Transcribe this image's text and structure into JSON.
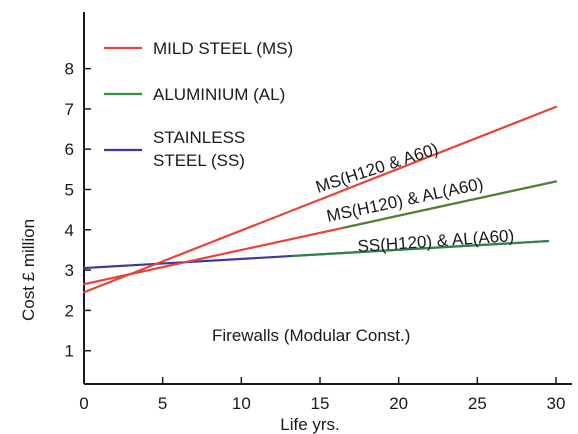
{
  "chart_data": {
    "type": "line",
    "title": "",
    "xlabel": "Life yrs.",
    "ylabel": "Cost £ million",
    "xlim": [
      0,
      31
    ],
    "ylim": [
      0,
      9
    ],
    "xticks": [
      0,
      5,
      10,
      15,
      20,
      25,
      30
    ],
    "yticks": [
      1,
      2,
      3,
      4,
      5,
      6,
      7,
      8
    ],
    "grid": false,
    "legend_position": "top-left",
    "legend": [
      {
        "label": "MILD STEEL (MS)",
        "color": "#e8433a"
      },
      {
        "label": "ALUMINIUM (AL)",
        "color": "#2f8f3a"
      },
      {
        "label_lines": [
          "STAINLESS",
          "STEEL (SS)"
        ],
        "color": "#3a3a9a"
      }
    ],
    "series": [
      {
        "label": "MS(H120 & A60)",
        "color": "#e8433a",
        "x": [
          0,
          30
        ],
        "y": [
          2.45,
          7.05
        ]
      },
      {
        "label": "MS(H120) & AL(A60)",
        "color": "#e8433a",
        "accent_color": "#2f8f3a",
        "x": [
          0,
          30
        ],
        "y": [
          2.65,
          5.2
        ]
      },
      {
        "label": "SS(H120) & AL(A60)",
        "color": "#3a3a9a",
        "accent_color": "#2f8f3a",
        "x": [
          0,
          29.5
        ],
        "y": [
          3.05,
          3.72
        ]
      }
    ],
    "annotations": [
      {
        "text": "Firewalls (Modular Const.)",
        "x": 18.5,
        "y": 1.35
      }
    ]
  }
}
